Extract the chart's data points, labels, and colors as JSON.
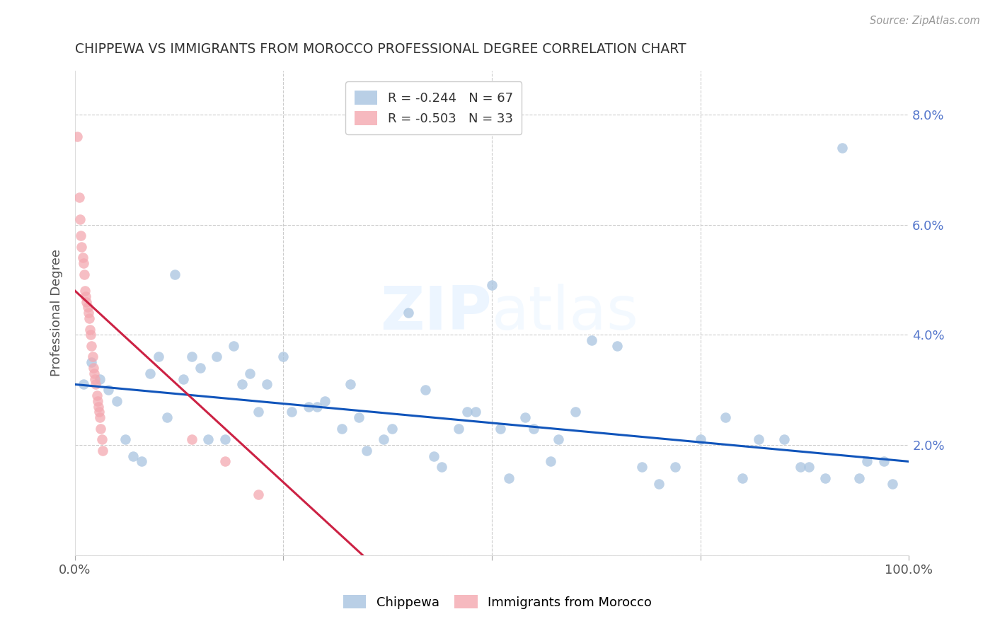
{
  "title": "CHIPPEWA VS IMMIGRANTS FROM MOROCCO PROFESSIONAL DEGREE CORRELATION CHART",
  "source": "Source: ZipAtlas.com",
  "ylabel": "Professional Degree",
  "right_ytick_vals": [
    0.0,
    0.02,
    0.04,
    0.06,
    0.08
  ],
  "right_ytick_labels": [
    "",
    "2.0%",
    "4.0%",
    "6.0%",
    "8.0%"
  ],
  "xlim": [
    0.0,
    1.0
  ],
  "ylim": [
    0.0,
    0.088
  ],
  "legend_blue_r": "R = -0.244",
  "legend_blue_n": "N = 67",
  "legend_pink_r": "R = -0.503",
  "legend_pink_n": "N = 33",
  "blue_color": "#A8C4E0",
  "pink_color": "#F4A8B0",
  "trendline_blue": "#1155BB",
  "trendline_pink": "#CC2244",
  "blue_scatter_x": [
    0.01,
    0.02,
    0.03,
    0.04,
    0.05,
    0.06,
    0.07,
    0.08,
    0.09,
    0.1,
    0.11,
    0.12,
    0.13,
    0.14,
    0.15,
    0.16,
    0.17,
    0.18,
    0.19,
    0.2,
    0.21,
    0.22,
    0.23,
    0.25,
    0.26,
    0.28,
    0.29,
    0.3,
    0.32,
    0.33,
    0.34,
    0.35,
    0.37,
    0.38,
    0.4,
    0.42,
    0.43,
    0.44,
    0.46,
    0.47,
    0.48,
    0.5,
    0.51,
    0.52,
    0.54,
    0.55,
    0.57,
    0.58,
    0.6,
    0.62,
    0.65,
    0.68,
    0.7,
    0.72,
    0.75,
    0.78,
    0.8,
    0.82,
    0.85,
    0.87,
    0.88,
    0.9,
    0.92,
    0.94,
    0.95,
    0.97,
    0.98
  ],
  "blue_scatter_y": [
    0.031,
    0.035,
    0.032,
    0.03,
    0.028,
    0.021,
    0.018,
    0.017,
    0.033,
    0.036,
    0.025,
    0.051,
    0.032,
    0.036,
    0.034,
    0.021,
    0.036,
    0.021,
    0.038,
    0.031,
    0.033,
    0.026,
    0.031,
    0.036,
    0.026,
    0.027,
    0.027,
    0.028,
    0.023,
    0.031,
    0.025,
    0.019,
    0.021,
    0.023,
    0.044,
    0.03,
    0.018,
    0.016,
    0.023,
    0.026,
    0.026,
    0.049,
    0.023,
    0.014,
    0.025,
    0.023,
    0.017,
    0.021,
    0.026,
    0.039,
    0.038,
    0.016,
    0.013,
    0.016,
    0.021,
    0.025,
    0.014,
    0.021,
    0.021,
    0.016,
    0.016,
    0.014,
    0.074,
    0.014,
    0.017,
    0.017,
    0.013
  ],
  "pink_scatter_x": [
    0.003,
    0.005,
    0.006,
    0.007,
    0.008,
    0.009,
    0.01,
    0.011,
    0.012,
    0.013,
    0.014,
    0.015,
    0.016,
    0.017,
    0.018,
    0.019,
    0.02,
    0.021,
    0.022,
    0.023,
    0.024,
    0.025,
    0.026,
    0.027,
    0.028,
    0.029,
    0.03,
    0.031,
    0.032,
    0.033,
    0.14,
    0.18,
    0.22
  ],
  "pink_scatter_y": [
    0.076,
    0.065,
    0.061,
    0.058,
    0.056,
    0.054,
    0.053,
    0.051,
    0.048,
    0.047,
    0.046,
    0.045,
    0.044,
    0.043,
    0.041,
    0.04,
    0.038,
    0.036,
    0.034,
    0.033,
    0.032,
    0.031,
    0.029,
    0.028,
    0.027,
    0.026,
    0.025,
    0.023,
    0.021,
    0.019,
    0.021,
    0.017,
    0.011
  ],
  "blue_trend_x": [
    0.0,
    1.0
  ],
  "blue_trend_y": [
    0.031,
    0.017
  ],
  "pink_trend_x": [
    0.0,
    0.345
  ],
  "pink_trend_y": [
    0.048,
    0.0
  ]
}
